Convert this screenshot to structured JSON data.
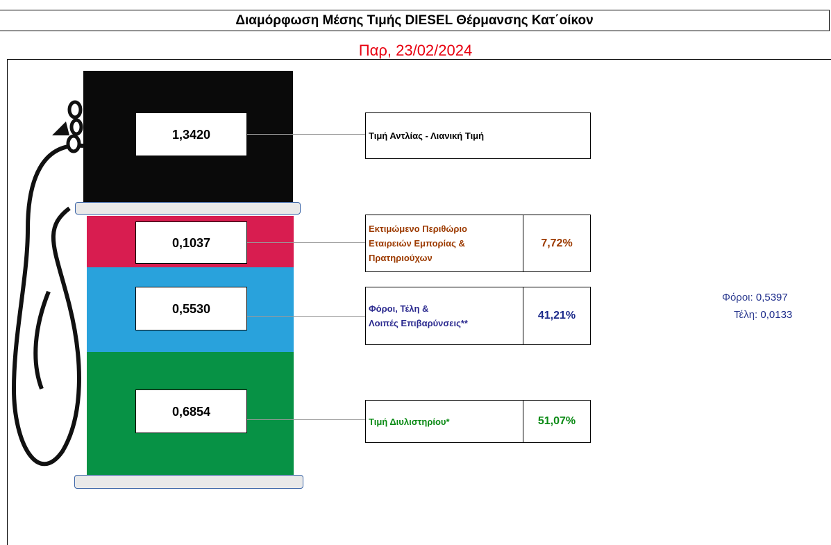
{
  "title": "Διαμόρφωση Μέσης Τιμής DIESEL Θέρμανσης Κατ΄οίκον",
  "date": "Παρ, 23/02/2024",
  "colors": {
    "date": "#e8000f",
    "pump_black": "#0a0a0a",
    "margin_red": "#d81d50",
    "taxes_blue": "#29a2dc",
    "refinery_green": "#079245",
    "margin_text": "#9c3a00",
    "taxes_text": "#2b2a8f",
    "refinery_text": "#0a8a14"
  },
  "chart_data": {
    "type": "bar",
    "title": "Διαμόρφωση Μέσης Τιμής DIESEL Θέρμανσης Κατ΄οίκον",
    "total": {
      "label": "Τιμή Αντλίας - Λιανική Τιμή",
      "value": "1,3420"
    },
    "components": [
      {
        "key": "margin",
        "label": "Εκτιμώμενο Περιθώριο Εταιρειών Εμπορίας & Πρατηριούχων",
        "value": "0,1037",
        "percent": "7,72%"
      },
      {
        "key": "taxes",
        "label": "Φόροι, Τέλη & Λοιπές Επιβαρύνσεις**",
        "value": "0,5530",
        "percent": "41,21%"
      },
      {
        "key": "refinery",
        "label": "Τιμή Διυλιστηρίου*",
        "value": "0,6854",
        "percent": "51,07%"
      }
    ],
    "tax_breakdown": [
      {
        "label": "Φόροι:",
        "value": "0,5397"
      },
      {
        "label": "Τέλη:",
        "value": "0,0133"
      }
    ]
  },
  "labels": {
    "total": "Τιμή Αντλίας - Λιανική Τιμή",
    "margin_line1": "Εκτιμώμενο Περιθώριο",
    "margin_line2": "Εταιρειών Εμπορίας &",
    "margin_line3": "Πρατηριούχων",
    "taxes_line1": "Φόροι, Τέλη &",
    "taxes_line2": "Λοιπές Επιβαρύνσεις**",
    "refinery": "Τιμή Διυλιστηρίου*"
  }
}
